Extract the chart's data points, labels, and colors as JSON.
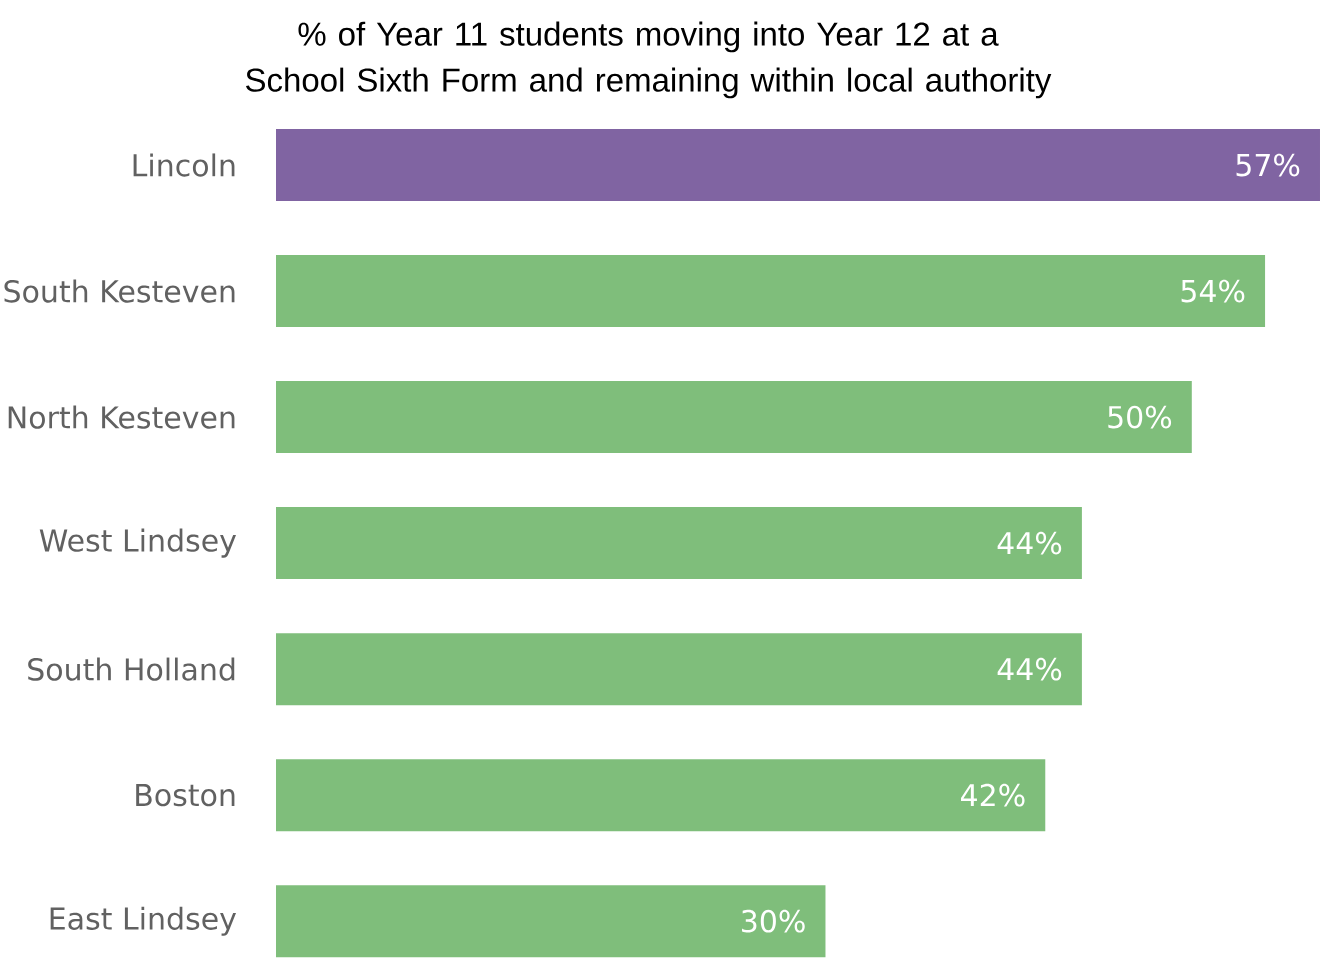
{
  "chart_data": {
    "type": "bar",
    "orientation": "horizontal",
    "title": "% of Year 11 students moving into Year 12 at a School Sixth Form and remaining within local authority",
    "categories": [
      "Lincoln",
      "South Kesteven",
      "North Kesteven",
      "West Lindsey",
      "South Holland",
      "Boston",
      "East Lindsey"
    ],
    "values": [
      57,
      54,
      50,
      44,
      44,
      42,
      30
    ],
    "colors": [
      "#8064a2",
      "#7fbe7b",
      "#7fbe7b",
      "#7fbe7b",
      "#7fbe7b",
      "#7fbe7b",
      "#7fbe7b"
    ],
    "value_labels": [
      "57%",
      "54%",
      "50%",
      "44%",
      "44%",
      "42%",
      "30%"
    ]
  }
}
